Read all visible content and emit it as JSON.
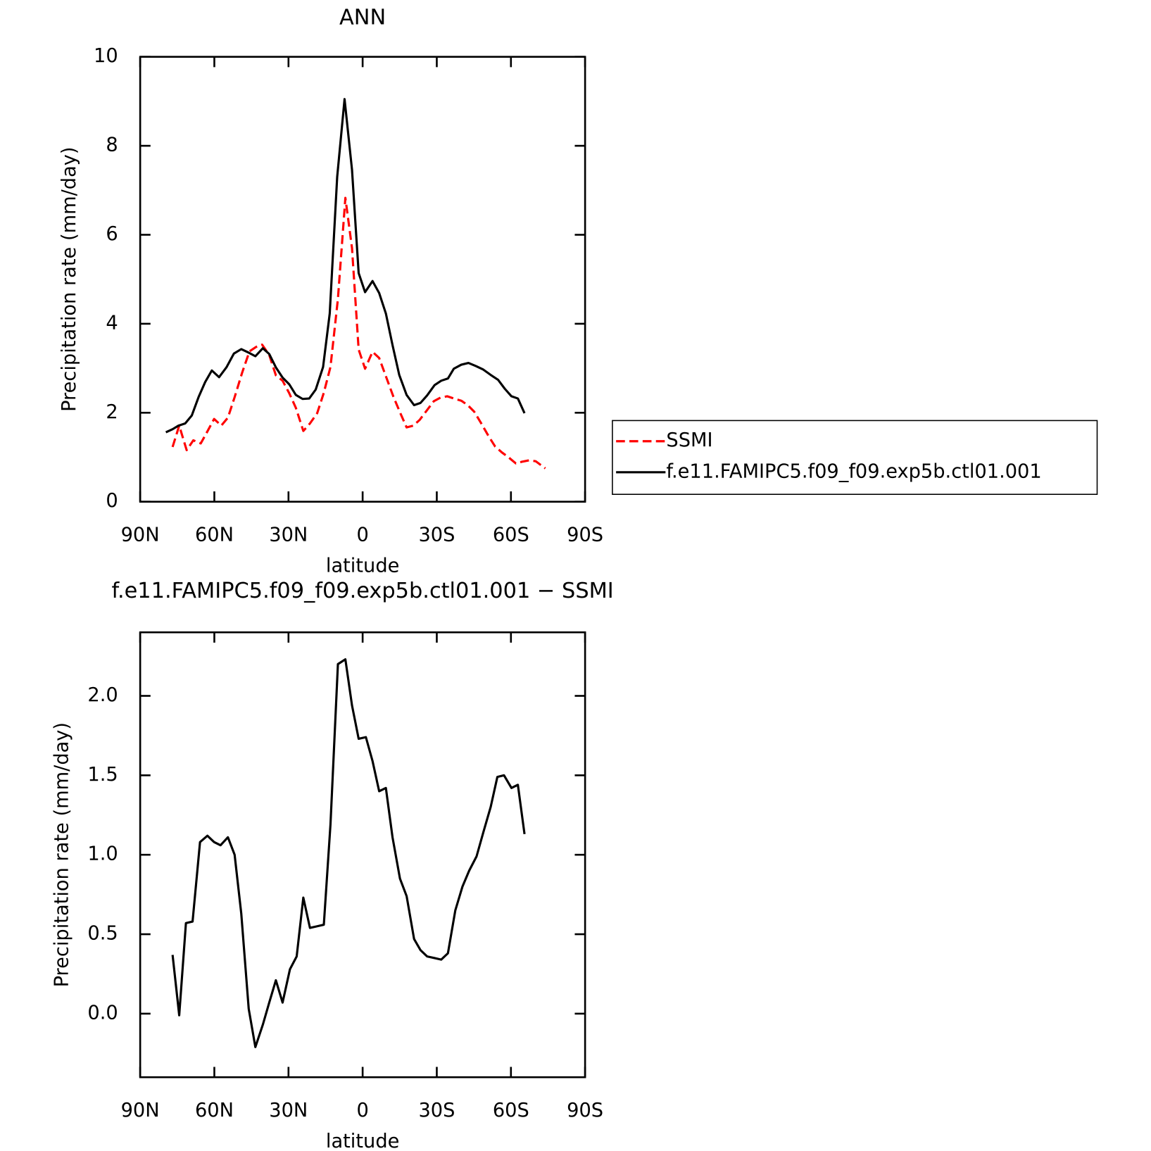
{
  "chart_data": [
    {
      "type": "line",
      "title": "ANN",
      "xlabel": "latitude",
      "ylabel": "Precipitation rate (mm/day)",
      "xlim": [
        90,
        -90
      ],
      "xticks": [
        {
          "value": 90,
          "label": "90N"
        },
        {
          "value": 60,
          "label": "60N"
        },
        {
          "value": 30,
          "label": "30N"
        },
        0,
        {
          "value": -30,
          "label": "30S"
        },
        {
          "value": -60,
          "label": "60S"
        },
        {
          "value": -90,
          "label": "90S"
        }
      ],
      "ylim": [
        0,
        10
      ],
      "yticks": [
        0,
        2,
        4,
        6,
        8,
        10
      ],
      "legend": "outside-right",
      "series": [
        {
          "name": "SSMI",
          "color": "#ff0000",
          "linestyle": "dashed",
          "x": [
            76.9,
            74.2,
            71.2,
            68.5,
            65.5,
            62.8,
            60.1,
            57.2,
            54.5,
            51.8,
            48.8,
            45.8,
            43.1,
            40.7,
            37.8,
            35.1,
            32.4,
            29.7,
            27.0,
            24.0,
            21.3,
            18.4,
            15.7,
            13.0,
            10.0,
            7.0,
            4.3,
            1.6,
            -1.0,
            -4.0,
            -6.7,
            -9.4,
            -12.4,
            -15.1,
            -17.8,
            -20.5,
            -23.1,
            -25.8,
            -28.8,
            -31.5,
            -34.2,
            -36.9,
            -39.9,
            -42.5,
            -45.2,
            -48.2,
            -50.9,
            -53.6,
            -56.3,
            -59.0,
            -62.0,
            -64.6,
            -67.3,
            -70.0,
            -73.9
          ],
          "values": [
            1.23,
            1.71,
            1.16,
            1.38,
            1.31,
            1.58,
            1.86,
            1.71,
            1.89,
            2.35,
            2.89,
            3.38,
            3.48,
            3.53,
            3.3,
            2.84,
            2.72,
            2.44,
            2.11,
            1.59,
            1.76,
            1.99,
            2.45,
            3.03,
            4.56,
            6.83,
            5.7,
            3.42,
            2.99,
            3.37,
            3.23,
            2.82,
            2.37,
            2.01,
            1.67,
            1.71,
            1.84,
            2.04,
            2.26,
            2.34,
            2.37,
            2.32,
            2.27,
            2.17,
            2.02,
            1.74,
            1.48,
            1.24,
            1.11,
            1.0,
            0.86,
            0.9,
            0.93,
            0.91,
            0.75
          ]
        },
        {
          "name": "f.e11.FAMIPC5.f09_f09.exp5b.ctl01.001",
          "color": "#000000",
          "linestyle": "solid",
          "x": [
            79.6,
            76.9,
            74.5,
            71.8,
            69.1,
            66.4,
            63.7,
            61.0,
            58.1,
            55.1,
            52.1,
            49.1,
            46.1,
            43.4,
            40.4,
            37.8,
            35.1,
            32.4,
            29.7,
            27.0,
            24.3,
            21.6,
            19.0,
            16.0,
            13.3,
            10.3,
            7.3,
            4.3,
            1.6,
            -1.0,
            -4.0,
            -6.7,
            -9.4,
            -12.1,
            -14.8,
            -17.8,
            -20.8,
            -23.4,
            -26.1,
            -29.1,
            -31.8,
            -34.5,
            -36.9,
            -39.9,
            -42.8,
            -45.8,
            -48.8,
            -51.8,
            -54.8,
            -57.5,
            -60.2,
            -62.8,
            -65.5
          ],
          "values": [
            1.56,
            1.63,
            1.71,
            1.76,
            1.94,
            2.35,
            2.69,
            2.95,
            2.8,
            3.02,
            3.33,
            3.43,
            3.35,
            3.27,
            3.45,
            3.32,
            3.02,
            2.79,
            2.64,
            2.4,
            2.31,
            2.32,
            2.52,
            3.03,
            4.23,
            7.3,
            9.05,
            7.46,
            5.14,
            4.71,
            4.96,
            4.69,
            4.23,
            3.52,
            2.85,
            2.4,
            2.17,
            2.22,
            2.39,
            2.62,
            2.72,
            2.77,
            2.99,
            3.08,
            3.12,
            3.05,
            2.97,
            2.85,
            2.74,
            2.54,
            2.37,
            2.32,
            1.99
          ]
        }
      ]
    },
    {
      "type": "line",
      "title": "f.e11.FAMIPC5.f09_f09.exp5b.ctl01.001 − SSMI",
      "xlabel": "latitude",
      "ylabel": "Precipitation rate (mm/day)",
      "xlim": [
        90,
        -90
      ],
      "xticks": [
        {
          "value": 90,
          "label": "90N"
        },
        {
          "value": 60,
          "label": "60N"
        },
        {
          "value": 30,
          "label": "30N"
        },
        0,
        {
          "value": -30,
          "label": "30S"
        },
        {
          "value": -60,
          "label": "60S"
        },
        {
          "value": -90,
          "label": "90S"
        }
      ],
      "ylim": [
        -0.4,
        2.4
      ],
      "yticks": [
        {
          "value": 0,
          "label": "0.0"
        },
        0.5,
        {
          "value": 1,
          "label": "1.0"
        },
        1.5,
        {
          "value": 2,
          "label": "2.0"
        }
      ],
      "series": [
        {
          "color": "#000000",
          "linestyle": "solid",
          "x": [
            76.9,
            74.2,
            71.5,
            68.8,
            65.8,
            62.8,
            60.1,
            57.5,
            54.5,
            51.8,
            49.1,
            46.1,
            43.4,
            40.4,
            37.8,
            35.1,
            32.4,
            29.4,
            26.7,
            24.0,
            21.3,
            18.4,
            15.7,
            13.0,
            10.0,
            7.0,
            4.3,
            1.6,
            -1.3,
            -4.0,
            -6.7,
            -9.4,
            -12.1,
            -15.1,
            -17.8,
            -20.8,
            -23.4,
            -26.1,
            -29.1,
            -31.8,
            -34.5,
            -37.5,
            -40.4,
            -43.1,
            -46.1,
            -48.8,
            -51.8,
            -54.5,
            -57.2,
            -60.2,
            -62.8,
            -65.5
          ],
          "values": [
            0.37,
            -0.01,
            0.57,
            0.58,
            1.08,
            1.12,
            1.08,
            1.06,
            1.11,
            1.0,
            0.63,
            0.03,
            -0.21,
            -0.07,
            0.07,
            0.21,
            0.07,
            0.28,
            0.36,
            0.73,
            0.54,
            0.55,
            0.56,
            1.19,
            2.2,
            2.23,
            1.94,
            1.73,
            1.74,
            1.59,
            1.4,
            1.42,
            1.11,
            0.85,
            0.74,
            0.47,
            0.4,
            0.36,
            0.35,
            0.34,
            0.38,
            0.65,
            0.8,
            0.9,
            0.99,
            1.14,
            1.3,
            1.49,
            1.5,
            1.42,
            1.44,
            1.13
          ]
        }
      ]
    }
  ]
}
